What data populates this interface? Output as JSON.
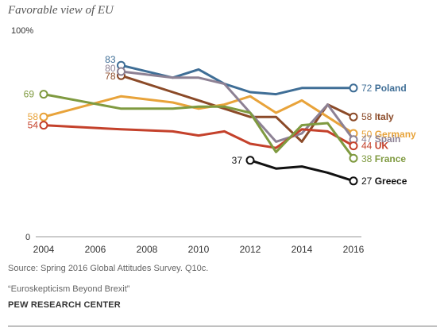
{
  "chart_data": {
    "type": "line",
    "title": "Favorable view of EU",
    "y_top_label": "100%",
    "y_bottom_label": "0",
    "xlim": [
      2004,
      2016
    ],
    "ylim": [
      0,
      100
    ],
    "x_ticks": [
      2004,
      2006,
      2008,
      2010,
      2012,
      2014,
      2016
    ],
    "grid": false,
    "series": [
      {
        "name": "Poland",
        "color": "#3f6e96",
        "bold": true,
        "points": [
          [
            2007,
            83
          ],
          [
            2009,
            77
          ],
          [
            2010,
            81
          ],
          [
            2011,
            74
          ],
          [
            2012,
            70
          ],
          [
            2013,
            69
          ],
          [
            2014,
            72
          ],
          [
            2015,
            72
          ],
          [
            2016,
            72
          ]
        ],
        "start_label": "83",
        "end_label": "72"
      },
      {
        "name": "Italy",
        "color": "#8b4a28",
        "bold": true,
        "points": [
          [
            2007,
            78
          ],
          [
            2009,
            70
          ],
          [
            2010,
            66
          ],
          [
            2011,
            62
          ],
          [
            2012,
            58
          ],
          [
            2013,
            58
          ],
          [
            2014,
            46
          ],
          [
            2015,
            64
          ],
          [
            2016,
            58
          ]
        ],
        "start_label": "78",
        "end_label": "58"
      },
      {
        "name": "Germany",
        "color": "#e8a33a",
        "bold": true,
        "points": [
          [
            2004,
            58
          ],
          [
            2007,
            68
          ],
          [
            2009,
            65
          ],
          [
            2010,
            62
          ],
          [
            2011,
            64
          ],
          [
            2012,
            68
          ],
          [
            2013,
            60
          ],
          [
            2014,
            66
          ],
          [
            2015,
            58
          ],
          [
            2016,
            50
          ]
        ],
        "start_label": "58",
        "end_label": "50"
      },
      {
        "name": "Spain",
        "color": "#8d8194",
        "bold": true,
        "points": [
          [
            2007,
            80
          ],
          [
            2009,
            77
          ],
          [
            2010,
            77
          ],
          [
            2011,
            74
          ],
          [
            2012,
            60
          ],
          [
            2013,
            46
          ],
          [
            2014,
            50
          ],
          [
            2015,
            64
          ],
          [
            2016,
            47
          ]
        ],
        "start_label": "80",
        "end_label": "47"
      },
      {
        "name": "UK",
        "color": "#c4412b",
        "bold": true,
        "points": [
          [
            2004,
            54
          ],
          [
            2007,
            52
          ],
          [
            2009,
            51
          ],
          [
            2010,
            49
          ],
          [
            2011,
            51
          ],
          [
            2012,
            45
          ],
          [
            2013,
            43
          ],
          [
            2014,
            52
          ],
          [
            2015,
            51
          ],
          [
            2016,
            44
          ]
        ],
        "start_label": "54",
        "end_label": "44"
      },
      {
        "name": "France",
        "color": "#7f9a40",
        "bold": true,
        "points": [
          [
            2004,
            69
          ],
          [
            2007,
            62
          ],
          [
            2009,
            62
          ],
          [
            2010,
            63
          ],
          [
            2011,
            63
          ],
          [
            2012,
            60
          ],
          [
            2013,
            41
          ],
          [
            2014,
            54
          ],
          [
            2015,
            55
          ],
          [
            2016,
            38
          ]
        ],
        "start_label": "69",
        "end_label": "38"
      },
      {
        "name": "Greece",
        "color": "#111111",
        "bold": true,
        "points": [
          [
            2012,
            37
          ],
          [
            2013,
            33
          ],
          [
            2014,
            34
          ],
          [
            2015,
            31
          ],
          [
            2016,
            27
          ]
        ],
        "start_label": "37",
        "end_label": "27"
      }
    ]
  },
  "notes": {
    "source": "Source: Spring 2016 Global Attitudes Survey. Q10c.",
    "report": "“Euroskepticism Beyond Brexit”",
    "org": "PEW RESEARCH CENTER"
  }
}
